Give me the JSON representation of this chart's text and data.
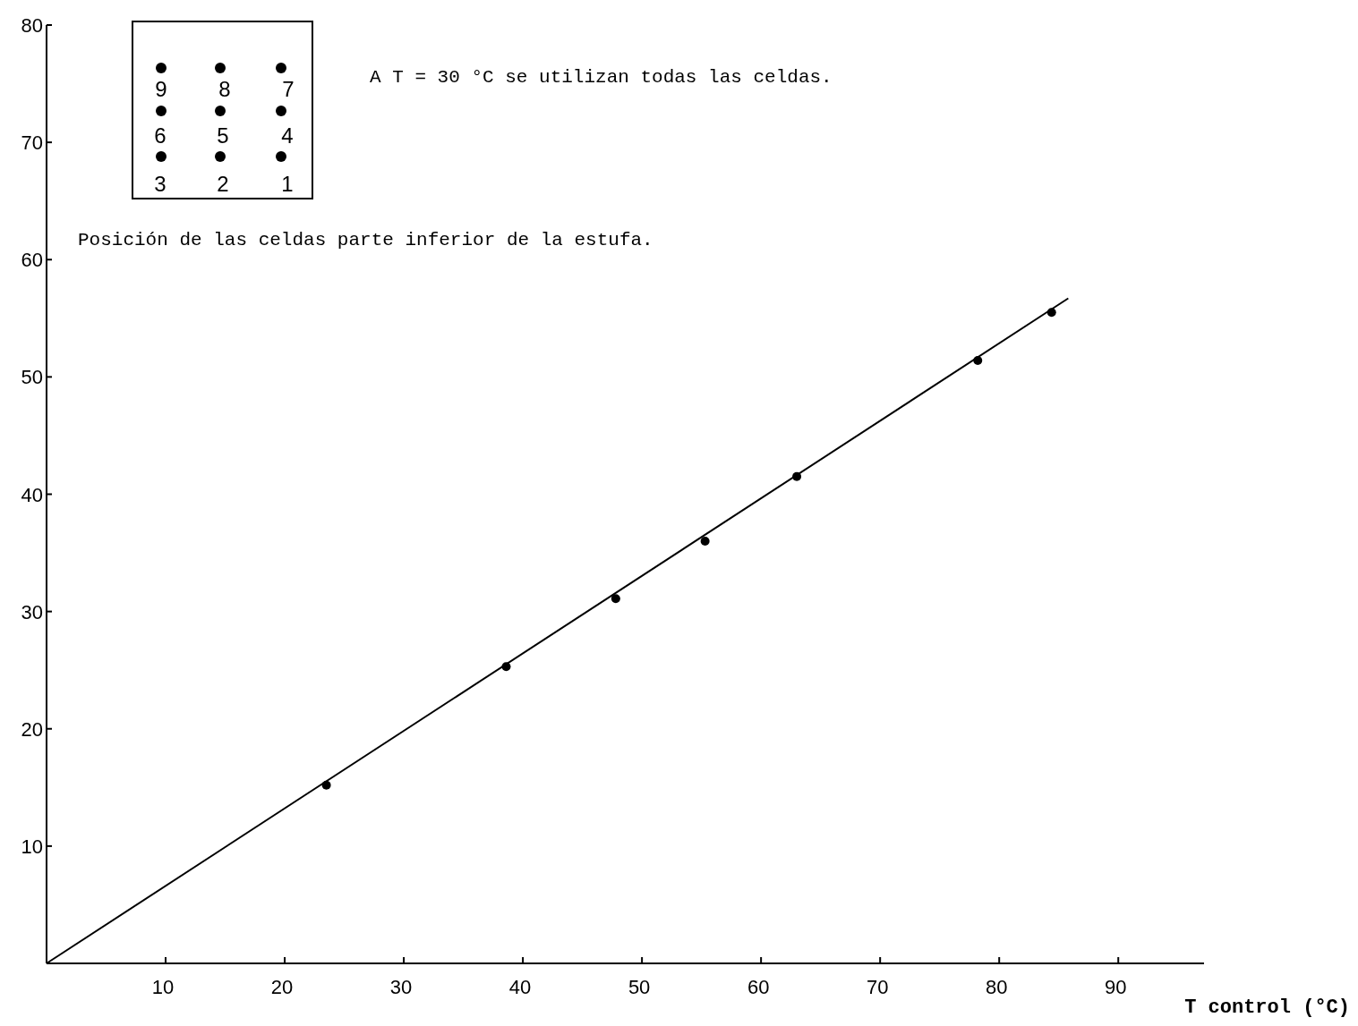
{
  "chart_data": {
    "type": "scatter",
    "xlabel": "T control (°C)",
    "xlim": [
      0,
      97.2
    ],
    "ylim": [
      0,
      80
    ],
    "xticks": [
      10,
      20,
      30,
      40,
      50,
      60,
      70,
      80,
      90
    ],
    "yticks": [
      10,
      20,
      30,
      40,
      50,
      60,
      70,
      80
    ],
    "grid": false,
    "series": [
      {
        "marker": "circle",
        "color": "#000000",
        "x": [
          23.5,
          38.6,
          47.8,
          55.3,
          63.0,
          78.2,
          84.4
        ],
        "values": [
          15.2,
          25.3,
          31.1,
          36.0,
          41.5,
          51.4,
          55.5
        ]
      },
      {
        "type": "line",
        "marker": "none",
        "color": "#000000",
        "x": [
          0,
          85.8
        ],
        "values": [
          0,
          56.7
        ]
      }
    ],
    "annotations": [
      "A T = 30 °C se utilizan todas las celdas.",
      "Posición de las celdas parte inferior de la estufa.",
      "9",
      "8",
      "7",
      "6",
      "5",
      "4",
      "3",
      "2",
      "1"
    ]
  }
}
